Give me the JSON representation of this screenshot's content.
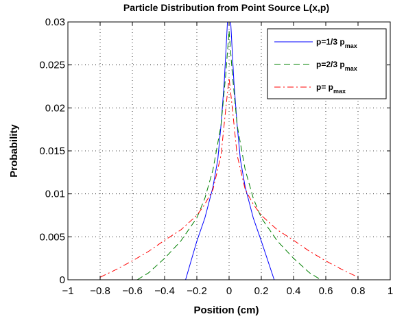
{
  "chart_data": {
    "type": "line",
    "title": "Particle Distribution from Point Source L(x,p)",
    "xlabel": "Position (cm)",
    "ylabel": "Probability",
    "xlim": [
      -1,
      1
    ],
    "ylim": [
      0,
      0.03
    ],
    "xticks": [
      -1,
      -0.8,
      -0.6,
      -0.4,
      -0.2,
      0,
      0.2,
      0.4,
      0.6,
      0.8,
      1
    ],
    "xtick_labels": [
      "−1",
      "−0.8",
      "−0.6",
      "−0.4",
      "−0.2",
      "0",
      "0.2",
      "0.4",
      "0.6",
      "0.8",
      "1"
    ],
    "yticks": [
      0,
      0.005,
      0.01,
      0.015,
      0.02,
      0.025,
      0.03
    ],
    "ytick_labels": [
      "0",
      "0.005",
      "0.01",
      "0.015",
      "0.02",
      "0.025",
      "0.03"
    ],
    "grid": true,
    "legend_position": "top-right",
    "series": [
      {
        "label_main": "p=1/3 p",
        "label_sub": "max",
        "color": "#0000ff",
        "style": "solid",
        "x": [
          -0.27,
          -0.2,
          -0.15,
          -0.1,
          -0.07,
          -0.05,
          -0.03,
          -0.02,
          -0.01,
          0,
          0.01,
          0.02,
          0.03,
          0.05,
          0.07,
          0.1,
          0.15,
          0.2,
          0.28
        ],
        "y": [
          0,
          0.0045,
          0.0072,
          0.0108,
          0.014,
          0.018,
          0.023,
          0.0265,
          0.03,
          0.034,
          0.03,
          0.0265,
          0.023,
          0.018,
          0.014,
          0.0108,
          0.0072,
          0.0045,
          0
        ]
      },
      {
        "label_main": "p=2/3 p",
        "label_sub": "max",
        "color": "#008000",
        "style": "dashed",
        "x": [
          -0.57,
          -0.5,
          -0.4,
          -0.3,
          -0.2,
          -0.15,
          -0.1,
          -0.05,
          -0.02,
          0,
          0.02,
          0.05,
          0.1,
          0.15,
          0.2,
          0.3,
          0.4,
          0.5,
          0.57
        ],
        "y": [
          0,
          0.0008,
          0.0025,
          0.0045,
          0.0072,
          0.0095,
          0.0128,
          0.018,
          0.024,
          0.029,
          0.024,
          0.018,
          0.0128,
          0.0095,
          0.0072,
          0.0045,
          0.0025,
          0.0008,
          0
        ]
      },
      {
        "label_main": "p= p",
        "label_sub": "max",
        "color": "#ff0000",
        "style": "dashdot",
        "x": [
          -0.8,
          -0.7,
          -0.6,
          -0.5,
          -0.4,
          -0.3,
          -0.2,
          -0.15,
          -0.1,
          -0.05,
          -0.02,
          0,
          0.02,
          0.05,
          0.1,
          0.15,
          0.2,
          0.3,
          0.4,
          0.5,
          0.6,
          0.7,
          0.8
        ],
        "y": [
          0.0003,
          0.0012,
          0.0022,
          0.0033,
          0.0046,
          0.0058,
          0.0075,
          0.0088,
          0.0105,
          0.0145,
          0.02,
          0.0235,
          0.02,
          0.0145,
          0.0105,
          0.0088,
          0.0075,
          0.0058,
          0.0046,
          0.0033,
          0.0022,
          0.0012,
          0.0003
        ]
      }
    ]
  }
}
